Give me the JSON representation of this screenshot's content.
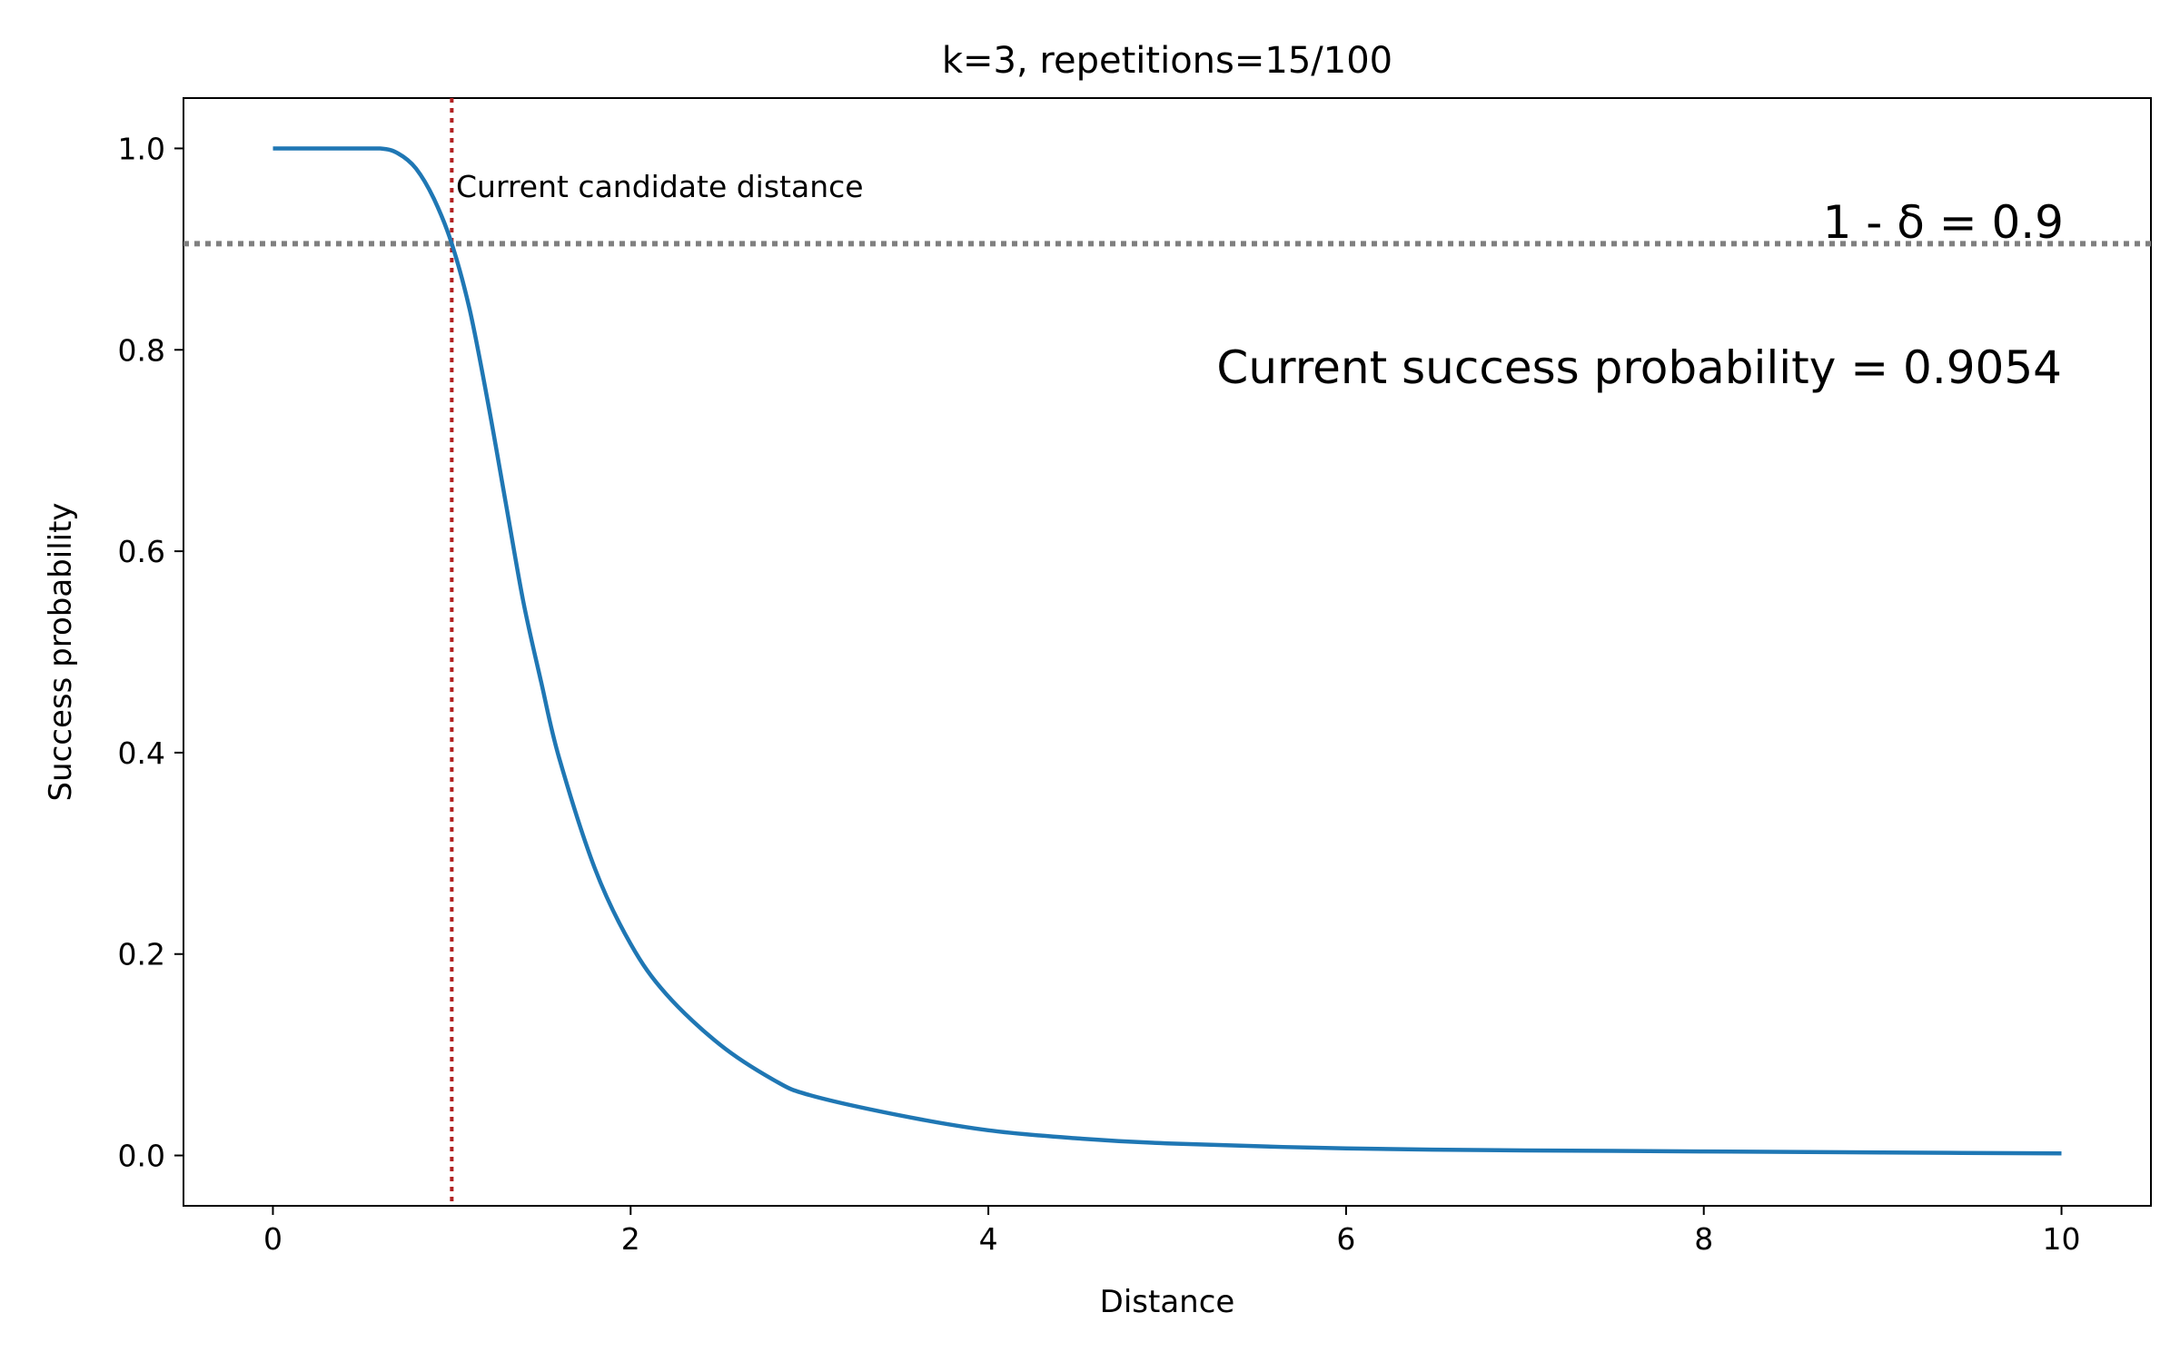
{
  "chart_data": {
    "type": "line",
    "title": "k=3, repetitions=15/100",
    "xlabel": "Distance",
    "ylabel": "Success probability",
    "xlim": [
      -0.5,
      10.5
    ],
    "ylim": [
      -0.05,
      1.05
    ],
    "xticks": [
      0,
      2,
      4,
      6,
      8,
      10
    ],
    "xtick_labels": [
      "0",
      "2",
      "4",
      "6",
      "8",
      "10"
    ],
    "yticks": [
      0.0,
      0.2,
      0.4,
      0.6,
      0.8,
      1.0
    ],
    "ytick_labels": [
      "0.0",
      "0.2",
      "0.4",
      "0.6",
      "0.8",
      "1.0"
    ],
    "grid": false,
    "series": [
      {
        "color": "#1f77b4",
        "x": [
          0,
          0.2,
          0.4,
          0.6,
          0.7,
          0.8,
          0.9,
          1.0,
          1.1,
          1.2,
          1.3,
          1.4,
          1.5,
          1.6,
          1.8,
          2.0,
          2.2,
          2.5,
          2.8,
          3.0,
          3.5,
          4.0,
          4.5,
          5.0,
          6.0,
          7.0,
          8.0,
          9.0,
          10.0
        ],
        "y": [
          1.0,
          1.0,
          1.0,
          1.0,
          0.995,
          0.98,
          0.95,
          0.9054,
          0.84,
          0.75,
          0.65,
          0.55,
          0.47,
          0.395,
          0.285,
          0.21,
          0.16,
          0.11,
          0.075,
          0.06,
          0.04,
          0.025,
          0.017,
          0.012,
          0.007,
          0.005,
          0.004,
          0.003,
          0.002
        ]
      }
    ],
    "threshold_line": {
      "y": 0.9054,
      "color": "#808080",
      "label": "1 - δ = 0.9"
    },
    "candidate_line": {
      "x": 1.0,
      "color": "#b22222",
      "label": "Current candidate distance"
    },
    "success_annotation": {
      "text": "Current success probability = 0.9054",
      "color": "#228b22"
    }
  }
}
